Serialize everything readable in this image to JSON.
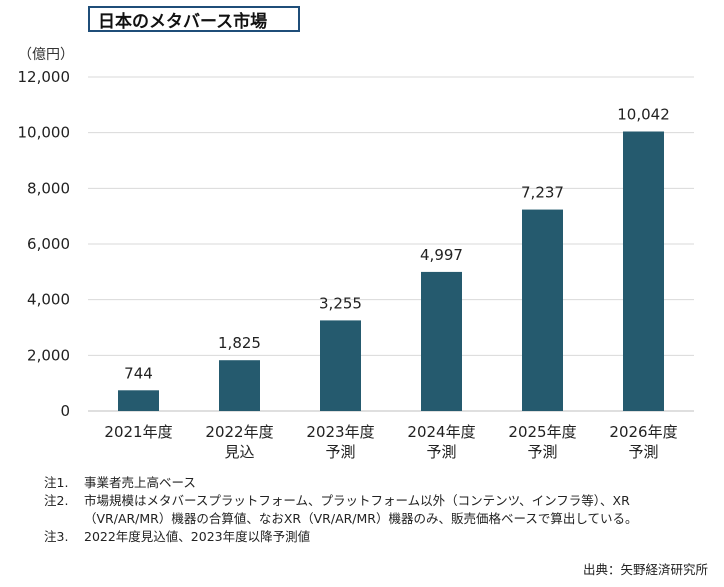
{
  "header": {
    "title": "日本のメタバース市場"
  },
  "unit_label": "（億円）",
  "chart_data": {
    "type": "bar",
    "title": "日本のメタバース市場",
    "ylabel": "（億円）",
    "ylim": [
      0,
      12000
    ],
    "yticks": [
      "0",
      "2,000",
      "4,000",
      "6,000",
      "8,000",
      "10,000",
      "12,000"
    ],
    "ytick_values": [
      0,
      2000,
      4000,
      6000,
      8000,
      10000,
      12000
    ],
    "categories": [
      [
        "2021年度"
      ],
      [
        "2022年度",
        "見込"
      ],
      [
        "2023年度",
        "予測"
      ],
      [
        "2024年度",
        "予測"
      ],
      [
        "2025年度",
        "予測"
      ],
      [
        "2026年度",
        "予測"
      ]
    ],
    "values": [
      744,
      1825,
      3255,
      4997,
      7237,
      10042
    ],
    "value_labels": [
      "744",
      "1,825",
      "3,255",
      "4,997",
      "7,237",
      "10,042"
    ],
    "bar_color": "#255a6e",
    "grid": true
  },
  "notes": [
    {
      "num": "注1.",
      "lines": [
        "事業者売上高ベース"
      ]
    },
    {
      "num": "注2.",
      "lines": [
        "市場規模はメタバースプラットフォーム、プラットフォーム以外（コンテンツ、インフラ等）、XR",
        "（VR/AR/MR）機器の合算値、なおXR（VR/AR/MR）機器のみ、販売価格ベースで算出している。"
      ]
    },
    {
      "num": "注3.",
      "lines": [
        "2022年度見込値、2023年度以降予測値"
      ]
    }
  ],
  "source": "出典：矢野経済研究所"
}
